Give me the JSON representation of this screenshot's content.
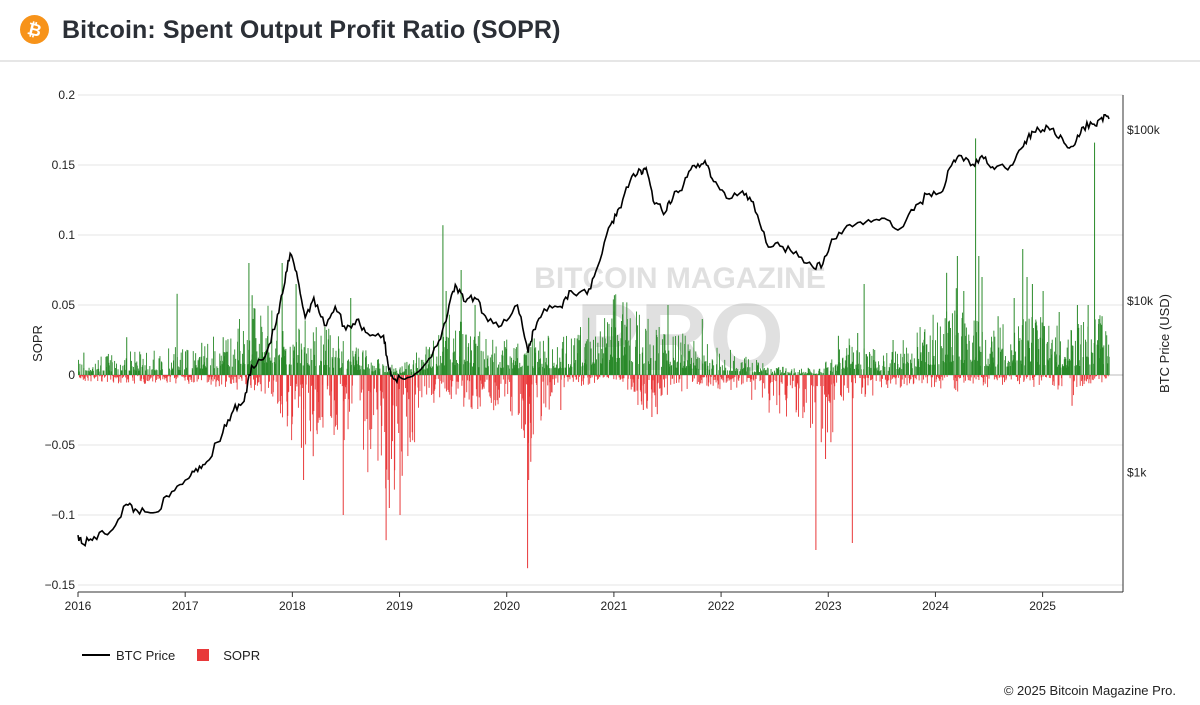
{
  "header": {
    "title": "Bitcoin: Spent Output Profit Ratio (SOPR)",
    "logo_icon": "bitcoin-logo-icon",
    "logo_color": "#f7931a"
  },
  "watermark": {
    "line1": "BITCOIN MAGAZINE",
    "line2": "PRO"
  },
  "legend": {
    "price_label": "BTC Price",
    "sopr_label": "SOPR"
  },
  "footer": {
    "copyright": "© 2025 Bitcoin Magazine Pro."
  },
  "colors": {
    "positive": "#2a8a2a",
    "negative": "#e8393a",
    "price_line": "#000000",
    "grid": "#e6e6e6"
  },
  "chart_data": {
    "type": "bar+line",
    "title": "Bitcoin: Spent Output Profit Ratio (SOPR)",
    "x_axis": {
      "label": "",
      "range": [
        2016.0,
        2025.75
      ],
      "ticks": [
        2016,
        2017,
        2018,
        2019,
        2020,
        2021,
        2022,
        2023,
        2024,
        2025
      ]
    },
    "y_left": {
      "label": "SOPR",
      "range": [
        -0.155,
        0.2
      ],
      "ticks": [
        0.2,
        0.15,
        0.1,
        0.05,
        0,
        -0.05,
        -0.1,
        -0.15
      ],
      "tick_labels": [
        "0.2",
        "0.15",
        "0.1",
        "0.05",
        "0",
        "−0.05",
        "−0.1",
        "−0.15"
      ]
    },
    "y_right": {
      "label": "BTC Price (USD)",
      "scale": "log",
      "range": [
        200,
        160000
      ],
      "ticks": [
        1000,
        10000,
        100000
      ],
      "tick_labels": [
        "$1k",
        "$10k",
        "$100k"
      ]
    },
    "sopr_activity": [
      [
        2016.0,
        0.008,
        -0.003
      ],
      [
        2016.5,
        0.012,
        -0.004
      ],
      [
        2017.0,
        0.014,
        -0.004
      ],
      [
        2017.4,
        0.022,
        -0.006
      ],
      [
        2017.7,
        0.035,
        -0.008
      ],
      [
        2017.95,
        0.03,
        -0.03
      ],
      [
        2018.2,
        0.025,
        -0.035
      ],
      [
        2018.5,
        0.018,
        -0.03
      ],
      [
        2018.85,
        0.006,
        -0.055
      ],
      [
        2019.0,
        0.004,
        -0.05
      ],
      [
        2019.25,
        0.015,
        -0.015
      ],
      [
        2019.45,
        0.03,
        -0.01
      ],
      [
        2019.7,
        0.022,
        -0.018
      ],
      [
        2020.0,
        0.018,
        -0.015
      ],
      [
        2020.2,
        0.02,
        -0.035
      ],
      [
        2020.5,
        0.018,
        -0.008
      ],
      [
        2020.8,
        0.028,
        -0.004
      ],
      [
        2021.0,
        0.038,
        -0.006
      ],
      [
        2021.35,
        0.025,
        -0.018
      ],
      [
        2021.6,
        0.02,
        -0.008
      ],
      [
        2021.9,
        0.015,
        -0.006
      ],
      [
        2022.2,
        0.01,
        -0.008
      ],
      [
        2022.45,
        0.004,
        -0.018
      ],
      [
        2022.7,
        0.004,
        -0.02
      ],
      [
        2022.9,
        0.003,
        -0.04
      ],
      [
        2023.05,
        0.01,
        -0.03
      ],
      [
        2023.2,
        0.018,
        -0.012
      ],
      [
        2023.5,
        0.01,
        -0.008
      ],
      [
        2023.8,
        0.02,
        -0.004
      ],
      [
        2024.0,
        0.03,
        -0.006
      ],
      [
        2024.25,
        0.032,
        -0.008
      ],
      [
        2024.5,
        0.022,
        -0.006
      ],
      [
        2024.75,
        0.025,
        -0.004
      ],
      [
        2025.0,
        0.028,
        -0.006
      ],
      [
        2025.2,
        0.02,
        -0.012
      ],
      [
        2025.45,
        0.03,
        -0.004
      ],
      [
        2025.62,
        0.028,
        -0.003
      ]
    ],
    "sopr_spikes": [
      [
        2016.05,
        0.016
      ],
      [
        2016.45,
        0.027
      ],
      [
        2016.92,
        0.058
      ],
      [
        2017.15,
        0.023
      ],
      [
        2017.35,
        0.027
      ],
      [
        2017.59,
        0.08
      ],
      [
        2017.62,
        0.057
      ],
      [
        2017.9,
        0.08
      ],
      [
        2018.03,
        0.065
      ],
      [
        2018.08,
        -0.052
      ],
      [
        2018.1,
        -0.075
      ],
      [
        2018.19,
        -0.058
      ],
      [
        2018.47,
        -0.1
      ],
      [
        2018.54,
        0.055
      ],
      [
        2018.87,
        -0.118
      ],
      [
        2018.9,
        -0.095
      ],
      [
        2018.92,
        -0.06
      ],
      [
        2018.95,
        -0.068
      ],
      [
        2019.0,
        -0.1
      ],
      [
        2019.02,
        -0.072
      ],
      [
        2019.4,
        0.107
      ],
      [
        2019.43,
        0.06
      ],
      [
        2019.57,
        0.075
      ],
      [
        2019.7,
        0.05
      ],
      [
        2020.19,
        -0.138
      ],
      [
        2020.2,
        -0.075
      ],
      [
        2020.16,
        -0.045
      ],
      [
        2020.22,
        -0.062
      ],
      [
        2020.5,
        -0.025
      ],
      [
        2021.0,
        0.057
      ],
      [
        2021.08,
        0.052
      ],
      [
        2021.12,
        0.04
      ],
      [
        2021.27,
        -0.025
      ],
      [
        2021.35,
        -0.03
      ],
      [
        2021.4,
        -0.028
      ],
      [
        2021.5,
        0.05
      ],
      [
        2021.82,
        0.04
      ],
      [
        2022.45,
        -0.018
      ],
      [
        2022.6,
        -0.018
      ],
      [
        2022.88,
        -0.125
      ],
      [
        2022.93,
        -0.048
      ],
      [
        2022.97,
        -0.06
      ],
      [
        2023.02,
        -0.048
      ],
      [
        2023.09,
        0.028
      ],
      [
        2023.22,
        -0.12
      ],
      [
        2023.27,
        0.03
      ],
      [
        2023.33,
        0.065
      ],
      [
        2023.6,
        0.025
      ],
      [
        2023.97,
        0.025
      ],
      [
        2024.1,
        0.073
      ],
      [
        2024.19,
        0.062
      ],
      [
        2024.2,
        0.085
      ],
      [
        2024.26,
        0.06
      ],
      [
        2024.37,
        0.169
      ],
      [
        2024.4,
        0.085
      ],
      [
        2024.43,
        0.07
      ],
      [
        2024.58,
        0.042
      ],
      [
        2024.73,
        0.055
      ],
      [
        2024.81,
        0.09
      ],
      [
        2024.85,
        0.07
      ],
      [
        2024.9,
        0.065
      ],
      [
        2025.0,
        0.06
      ],
      [
        2025.15,
        0.045
      ],
      [
        2025.27,
        -0.022
      ],
      [
        2025.32,
        0.05
      ],
      [
        2025.42,
        0.05
      ],
      [
        2025.48,
        0.166
      ],
      [
        2025.52,
        0.04
      ],
      [
        2025.55,
        0.042
      ]
    ],
    "btc_price": [
      [
        2016.0,
        430
      ],
      [
        2016.05,
        380
      ],
      [
        2016.15,
        420
      ],
      [
        2016.3,
        450
      ],
      [
        2016.45,
        650
      ],
      [
        2016.55,
        600
      ],
      [
        2016.7,
        580
      ],
      [
        2016.85,
        720
      ],
      [
        2017.0,
        900
      ],
      [
        2017.1,
        1050
      ],
      [
        2017.2,
        1150
      ],
      [
        2017.35,
        1700
      ],
      [
        2017.45,
        2300
      ],
      [
        2017.55,
        2600
      ],
      [
        2017.62,
        4200
      ],
      [
        2017.75,
        4800
      ],
      [
        2017.85,
        7500
      ],
      [
        2017.92,
        12000
      ],
      [
        2017.98,
        19000
      ],
      [
        2018.05,
        13500
      ],
      [
        2018.12,
        8000
      ],
      [
        2018.2,
        10500
      ],
      [
        2018.3,
        7200
      ],
      [
        2018.4,
        9300
      ],
      [
        2018.5,
        6800
      ],
      [
        2018.6,
        7800
      ],
      [
        2018.7,
        6500
      ],
      [
        2018.85,
        6300
      ],
      [
        2018.9,
        4000
      ],
      [
        2018.96,
        3500
      ],
      [
        2019.05,
        3500
      ],
      [
        2019.2,
        4000
      ],
      [
        2019.35,
        5500
      ],
      [
        2019.45,
        8500
      ],
      [
        2019.52,
        12500
      ],
      [
        2019.6,
        10000
      ],
      [
        2019.7,
        10500
      ],
      [
        2019.8,
        8200
      ],
      [
        2019.95,
        7200
      ],
      [
        2020.1,
        9500
      ],
      [
        2020.2,
        5000
      ],
      [
        2020.25,
        6800
      ],
      [
        2020.35,
        9000
      ],
      [
        2020.5,
        9300
      ],
      [
        2020.6,
        11500
      ],
      [
        2020.75,
        11000
      ],
      [
        2020.85,
        16000
      ],
      [
        2020.97,
        28000
      ],
      [
        2021.05,
        35000
      ],
      [
        2021.15,
        50000
      ],
      [
        2021.25,
        58000
      ],
      [
        2021.3,
        60000
      ],
      [
        2021.38,
        37000
      ],
      [
        2021.48,
        33000
      ],
      [
        2021.55,
        40000
      ],
      [
        2021.65,
        48000
      ],
      [
        2021.75,
        62000
      ],
      [
        2021.85,
        66000
      ],
      [
        2021.93,
        50000
      ],
      [
        2022.05,
        40000
      ],
      [
        2022.2,
        44000
      ],
      [
        2022.3,
        38000
      ],
      [
        2022.42,
        22000
      ],
      [
        2022.55,
        21000
      ],
      [
        2022.7,
        19500
      ],
      [
        2022.85,
        16000
      ],
      [
        2022.95,
        16500
      ],
      [
        2023.05,
        23000
      ],
      [
        2023.2,
        28000
      ],
      [
        2023.35,
        29000
      ],
      [
        2023.5,
        30500
      ],
      [
        2023.65,
        26000
      ],
      [
        2023.8,
        34000
      ],
      [
        2023.92,
        42000
      ],
      [
        2024.05,
        43000
      ],
      [
        2024.15,
        62000
      ],
      [
        2024.22,
        71000
      ],
      [
        2024.35,
        63000
      ],
      [
        2024.45,
        68000
      ],
      [
        2024.55,
        59000
      ],
      [
        2024.7,
        62000
      ],
      [
        2024.82,
        80000
      ],
      [
        2024.9,
        98000
      ],
      [
        2025.0,
        100000
      ],
      [
        2025.1,
        102000
      ],
      [
        2025.2,
        84000
      ],
      [
        2025.3,
        82000
      ],
      [
        2025.38,
        104000
      ],
      [
        2025.48,
        108000
      ],
      [
        2025.55,
        118000
      ],
      [
        2025.62,
        116000
      ]
    ]
  }
}
